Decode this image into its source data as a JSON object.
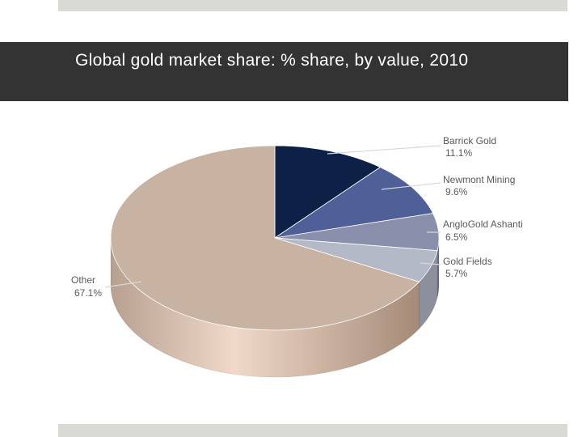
{
  "slide": {
    "title": "Global gold market share: % share, by value, 2010"
  },
  "colors": {
    "band": "#333333",
    "accent_bars": "#d9dad3"
  },
  "chart_data": {
    "type": "pie",
    "title": "Global gold market share: % share, by value, 2010",
    "unit": "%",
    "slices": [
      {
        "name": "Barrick Gold",
        "value": 11.1,
        "label": "11.1%",
        "color": "#0d2147",
        "side": "#081632"
      },
      {
        "name": "Newmont Mining",
        "value": 9.6,
        "label": "9.6%",
        "color": "#4f5f98",
        "side": "#36426e"
      },
      {
        "name": "AngloGold Ashanti",
        "value": 6.5,
        "label": "6.5%",
        "color": "#8a90ab",
        "side": "#686d86"
      },
      {
        "name": "Gold Fields",
        "value": 5.7,
        "label": "5.7%",
        "color": "#b3b9c6",
        "side": "#8b909c"
      },
      {
        "name": "Other",
        "value": 67.1,
        "label": "67.1%",
        "color": "#c8b2a2",
        "side": "#b39987"
      }
    ],
    "style": "3d-tilted",
    "legend": "none (callout labels)"
  }
}
